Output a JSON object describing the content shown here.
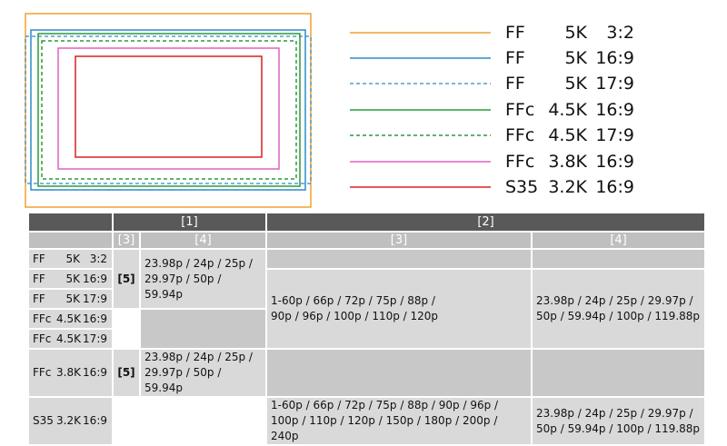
{
  "legend": [
    {
      "format": "FF",
      "resolution": "5K",
      "aspect": "3:2"
    },
    {
      "format": "FF",
      "resolution": "5K",
      "aspect": "16:9"
    },
    {
      "format": "FF",
      "resolution": "5K",
      "aspect": "17:9"
    },
    {
      "format": "FFc",
      "resolution": "4.5K",
      "aspect": "16:9"
    },
    {
      "format": "FFc",
      "resolution": "4.5K",
      "aspect": "17:9"
    },
    {
      "format": "FFc",
      "resolution": "3.8K",
      "aspect": "16:9"
    },
    {
      "format": "S35",
      "resolution": "3.2K",
      "aspect": "16:9"
    }
  ],
  "table": {
    "header": [
      "[1]",
      "[2]"
    ],
    "subheader": [
      "[3]",
      "[4]",
      "[3]",
      "[4]"
    ],
    "row_labels": [
      {
        "format": "FF",
        "resolution": "5K",
        "aspect": "3:2"
      },
      {
        "format": "FF",
        "resolution": "5K",
        "aspect": "16:9"
      },
      {
        "format": "FF",
        "resolution": "5K",
        "aspect": "17:9"
      },
      {
        "format": "FFc",
        "resolution": "4.5K",
        "aspect": "16:9"
      },
      {
        "format": "FFc",
        "resolution": "4.5K",
        "aspect": "17:9"
      },
      {
        "format": "FFc",
        "resolution": "3.8K",
        "aspect": "16:9"
      },
      {
        "format": "S35",
        "resolution": "3.2K",
        "aspect": "16:9"
      }
    ],
    "ff_mark": "[5]",
    "ff_rates": [
      "23.98p / 24p / 25p /",
      "29.97p / 50p / 59.94p"
    ],
    "ffc_mid_rates_3": [
      "1-60p / 66p / 72p / 75p / 88p /",
      "90p / 96p / 100p / 110p / 120p"
    ],
    "ffc_mid_rates_4": [
      "23.98p / 24p / 25p / 29.97p /",
      "50p / 59.94p / 100p / 119.88p"
    ],
    "ffc38_mark": "[5]",
    "ffc38_rates": [
      "23.98p / 24p / 25p /",
      "29.97p / 50p / 59.94p"
    ],
    "s35_rates_3": [
      "1-60p / 66p / 72p / 75p / 88p / 90p / 96p /",
      "100p / 110p / 120p / 150p / 180p / 200p / 240p"
    ],
    "s35_rates_4": [
      "23.98p / 24p / 25p / 29.97p /",
      "50p / 59.94p / 100p / 119.88p"
    ]
  }
}
